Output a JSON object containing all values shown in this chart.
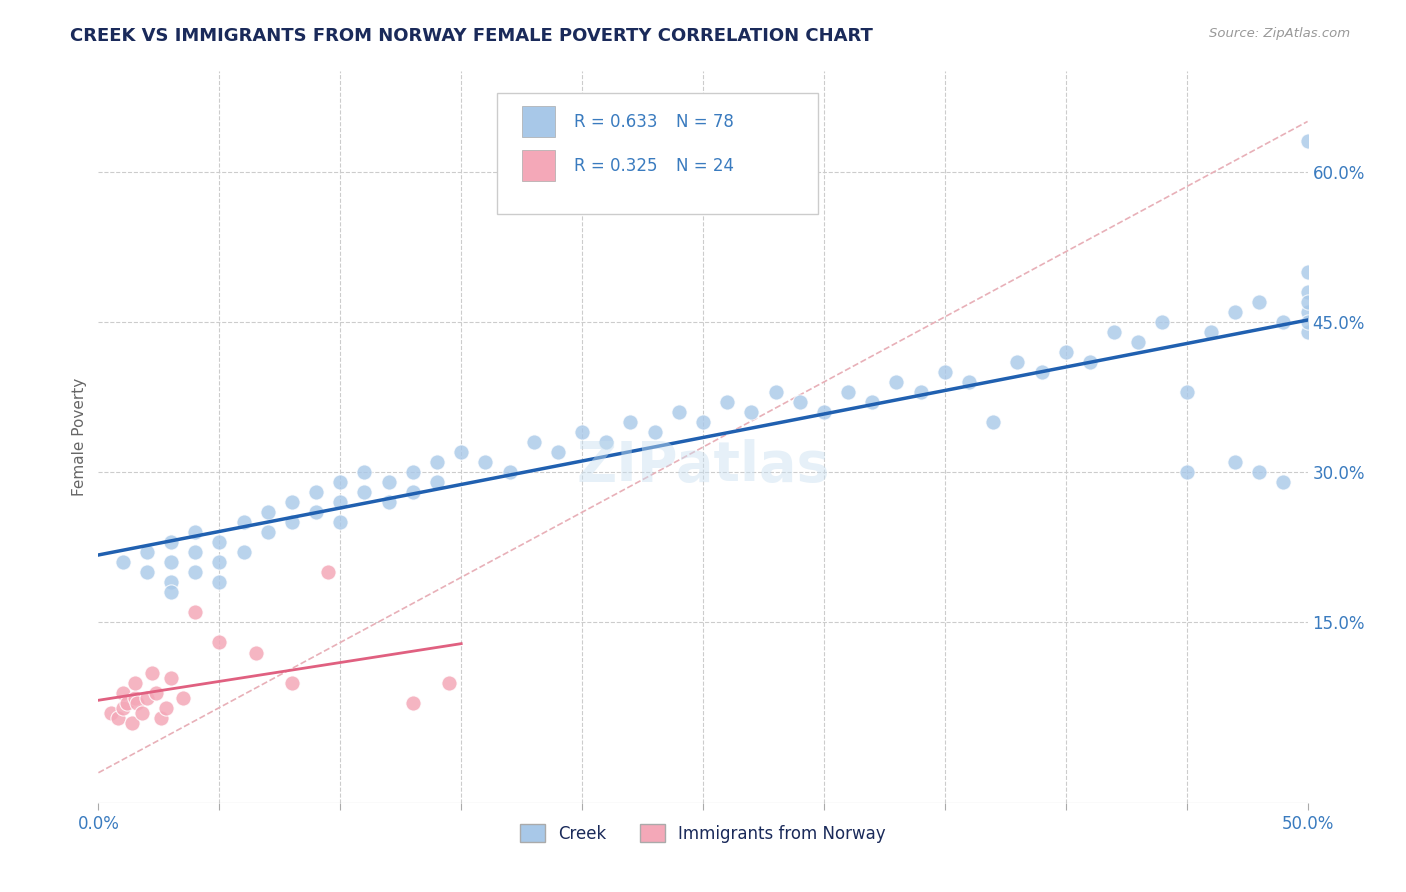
{
  "title": "CREEK VS IMMIGRANTS FROM NORWAY FEMALE POVERTY CORRELATION CHART",
  "source": "Source: ZipAtlas.com",
  "ylabel": "Female Poverty",
  "xlim": [
    0,
    0.5
  ],
  "ylim": [
    -0.03,
    0.7
  ],
  "ytick_positions": [
    0.15,
    0.3,
    0.45,
    0.6
  ],
  "ytick_labels": [
    "15.0%",
    "30.0%",
    "45.0%",
    "60.0%"
  ],
  "grid_color": "#cccccc",
  "background_color": "#ffffff",
  "watermark": "ZIPatlas",
  "blue_color": "#a8c8e8",
  "pink_color": "#f4a8b8",
  "blue_line_color": "#2060b0",
  "pink_line_color": "#e06080",
  "diag_line_color": "#e8b0b8",
  "title_color": "#1a2a5a",
  "label_color": "#3a7bbf",
  "creek_x": [
    0.01,
    0.02,
    0.02,
    0.03,
    0.03,
    0.03,
    0.03,
    0.04,
    0.04,
    0.04,
    0.05,
    0.05,
    0.05,
    0.06,
    0.06,
    0.07,
    0.07,
    0.08,
    0.08,
    0.09,
    0.09,
    0.1,
    0.1,
    0.1,
    0.11,
    0.11,
    0.12,
    0.12,
    0.13,
    0.13,
    0.14,
    0.14,
    0.15,
    0.16,
    0.17,
    0.18,
    0.19,
    0.2,
    0.21,
    0.22,
    0.23,
    0.24,
    0.25,
    0.26,
    0.27,
    0.28,
    0.29,
    0.3,
    0.31,
    0.32,
    0.33,
    0.34,
    0.35,
    0.36,
    0.37,
    0.38,
    0.39,
    0.4,
    0.41,
    0.42,
    0.43,
    0.44,
    0.45,
    0.45,
    0.46,
    0.47,
    0.47,
    0.48,
    0.48,
    0.49,
    0.49,
    0.5,
    0.5,
    0.5,
    0.5,
    0.5,
    0.5,
    0.5
  ],
  "creek_y": [
    0.21,
    0.2,
    0.22,
    0.19,
    0.21,
    0.23,
    0.18,
    0.22,
    0.2,
    0.24,
    0.21,
    0.23,
    0.19,
    0.25,
    0.22,
    0.26,
    0.24,
    0.25,
    0.27,
    0.26,
    0.28,
    0.27,
    0.25,
    0.29,
    0.28,
    0.3,
    0.29,
    0.27,
    0.3,
    0.28,
    0.31,
    0.29,
    0.32,
    0.31,
    0.3,
    0.33,
    0.32,
    0.34,
    0.33,
    0.35,
    0.34,
    0.36,
    0.35,
    0.37,
    0.36,
    0.38,
    0.37,
    0.36,
    0.38,
    0.37,
    0.39,
    0.38,
    0.4,
    0.39,
    0.35,
    0.41,
    0.4,
    0.42,
    0.41,
    0.44,
    0.43,
    0.45,
    0.38,
    0.3,
    0.44,
    0.46,
    0.31,
    0.47,
    0.3,
    0.45,
    0.29,
    0.63,
    0.5,
    0.48,
    0.46,
    0.44,
    0.47,
    0.45
  ],
  "norway_x": [
    0.005,
    0.008,
    0.01,
    0.01,
    0.012,
    0.014,
    0.015,
    0.015,
    0.016,
    0.018,
    0.02,
    0.022,
    0.024,
    0.026,
    0.028,
    0.03,
    0.035,
    0.04,
    0.05,
    0.065,
    0.08,
    0.095,
    0.13,
    0.145
  ],
  "norway_y": [
    0.06,
    0.055,
    0.065,
    0.08,
    0.07,
    0.05,
    0.075,
    0.09,
    0.07,
    0.06,
    0.075,
    0.1,
    0.08,
    0.055,
    0.065,
    0.095,
    0.075,
    0.16,
    0.13,
    0.12,
    0.09,
    0.2,
    0.07,
    0.09
  ]
}
